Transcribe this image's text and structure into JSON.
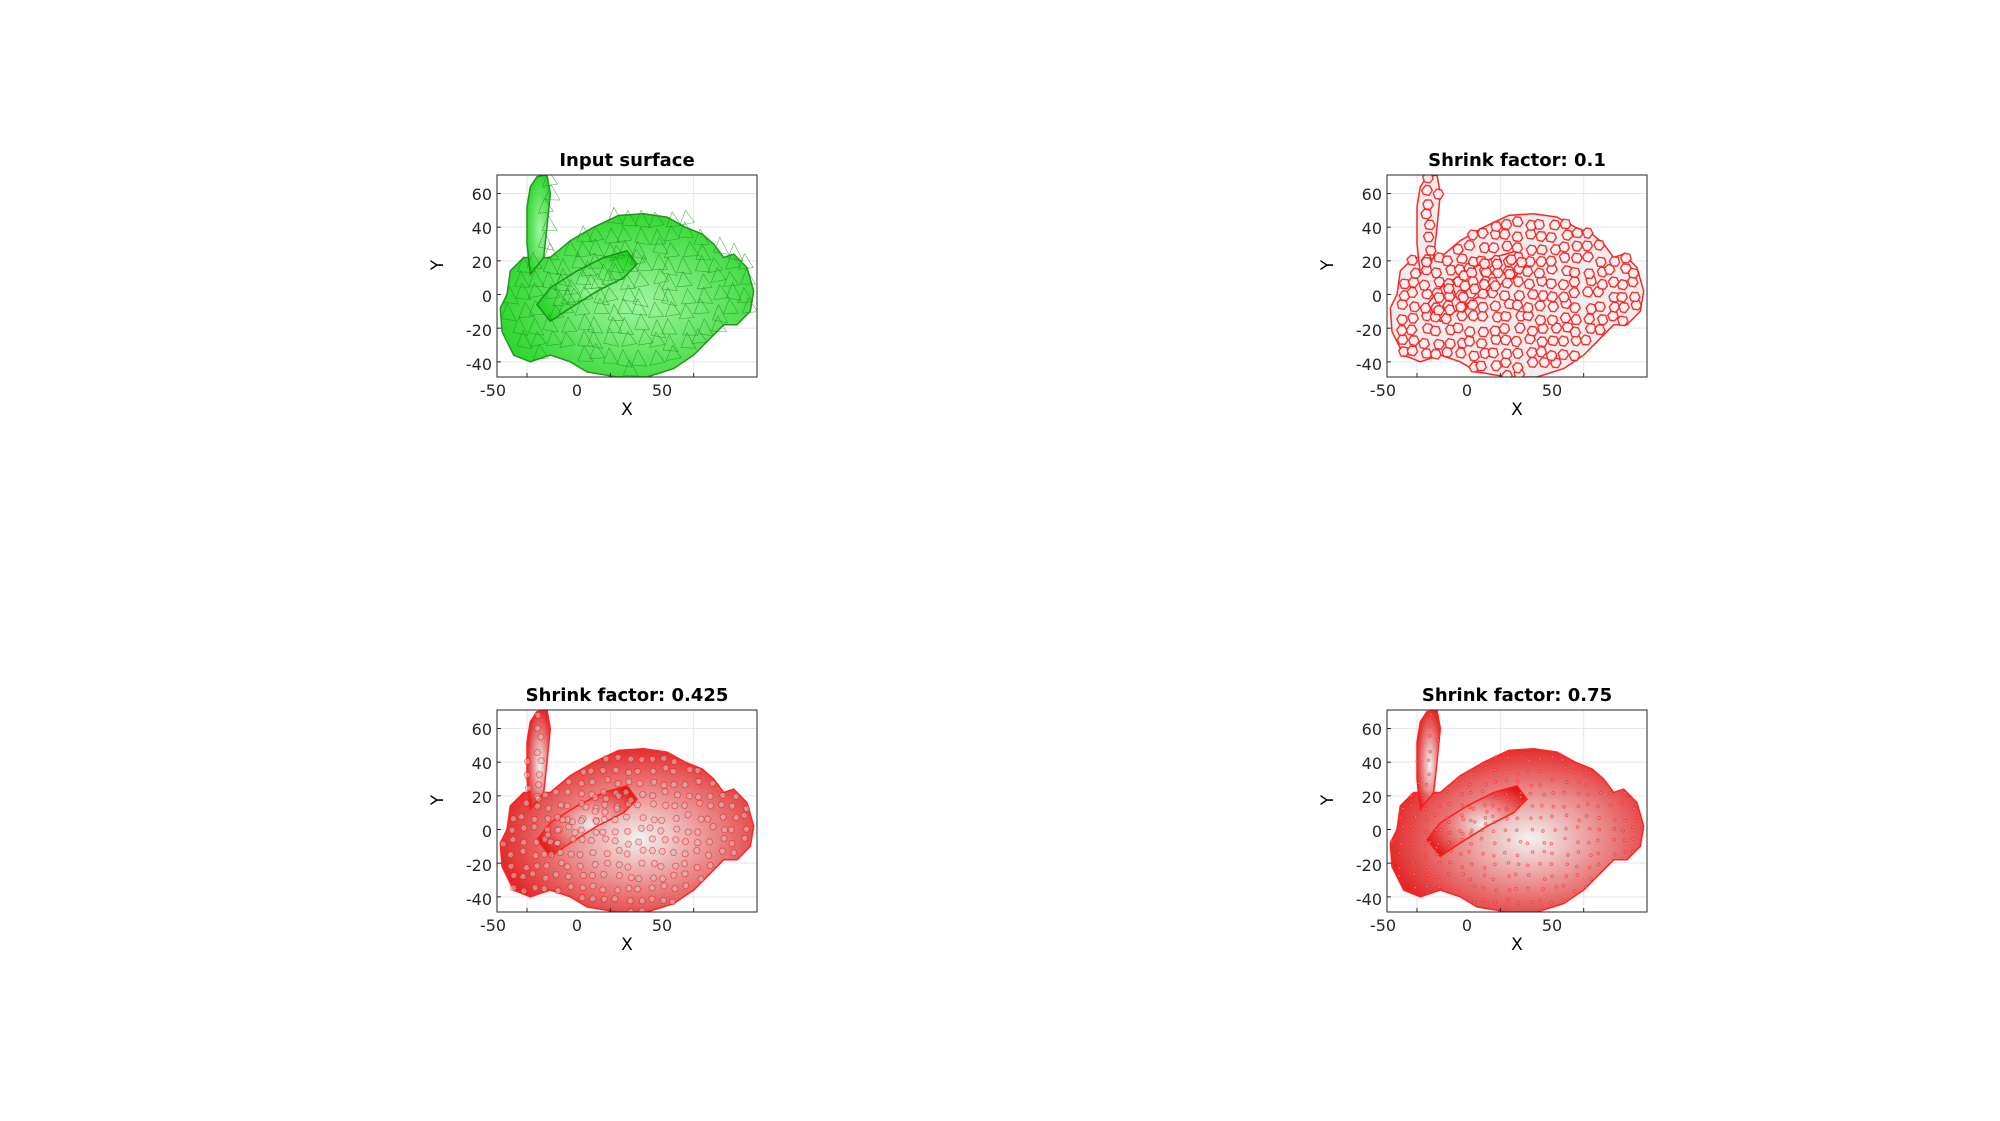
{
  "figure": {
    "panels": [
      {
        "title": "Input surface",
        "mode": "surface",
        "color": "#1fd41f",
        "edge": "#1a8f1a"
      },
      {
        "title": "Shrink factor: 0.1",
        "mode": "shrink",
        "shrink": 0.1,
        "color": "#e01010",
        "edge": "#ff1a1a"
      },
      {
        "title": "Shrink factor: 0.425",
        "mode": "shrink",
        "shrink": 0.425,
        "color": "#e01010",
        "edge": "#ff1a1a"
      },
      {
        "title": "Shrink factor: 0.75",
        "mode": "shrink",
        "shrink": 0.75,
        "color": "#e01010",
        "edge": "#ff1a1a"
      }
    ],
    "xlabel": "X",
    "ylabel": "Y",
    "xticks": [
      "-50",
      "0",
      "50"
    ],
    "yticks": [
      "60",
      "40",
      "20",
      "0",
      "-20",
      "-40"
    ],
    "xlim": [
      -68,
      88
    ],
    "ylim": [
      -49,
      71
    ]
  }
}
